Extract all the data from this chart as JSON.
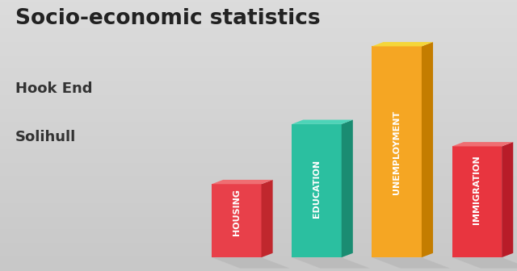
{
  "title": "Socio-economic statistics",
  "subtitle1": "Hook End",
  "subtitle2": "Solihull",
  "categories": [
    "HOUSING",
    "EDUCATION",
    "UNEMPLOYMENT",
    "IMMIGRATION"
  ],
  "values": [
    0.33,
    0.6,
    0.95,
    0.5
  ],
  "front_colors": [
    "#E8404A",
    "#2BBFA0",
    "#F5A623",
    "#E8353F"
  ],
  "side_colors": [
    "#C0272D",
    "#1A8C72",
    "#C47D00",
    "#B81C28"
  ],
  "top_colors": [
    "#EF6E72",
    "#4DD4B8",
    "#F5D63A",
    "#EF6E72"
  ],
  "bg_color_top": "#DCDCDC",
  "bg_color_bot": "#C8C8C8",
  "label_color": "#FFFFFF",
  "title_color": "#222222",
  "subtitle_color": "#333333",
  "title_fontsize": 19,
  "subtitle_fontsize": 13,
  "label_fontsize": 8
}
